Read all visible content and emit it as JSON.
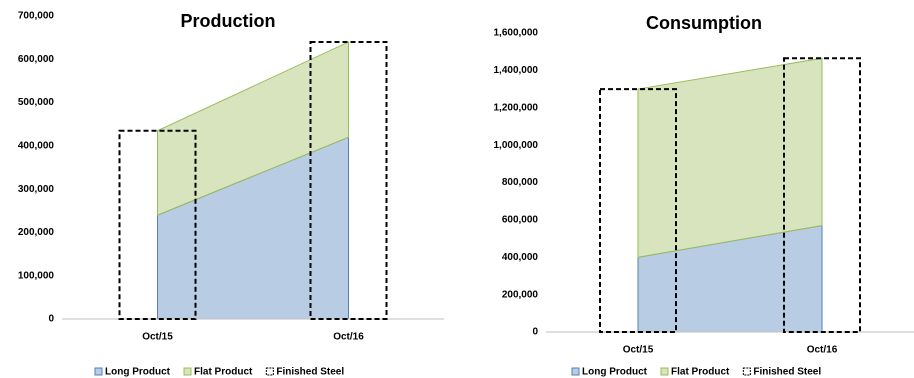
{
  "chart_data": [
    {
      "type": "area",
      "title": "Production",
      "categories": [
        "Oct/15",
        "Oct/16"
      ],
      "series": [
        {
          "name": "Long Product",
          "color": "#b8cce4",
          "values": [
            240000,
            420000
          ]
        },
        {
          "name": "Flat Product",
          "color": "#d7e4bd",
          "values": [
            195000,
            220000
          ]
        },
        {
          "name": "Finished Steel",
          "type": "bar",
          "color": "#000000",
          "values": [
            435000,
            640000
          ]
        }
      ],
      "ylim": [
        0,
        700000
      ],
      "yticks": [
        0,
        {
          "value": 100000,
          "label": "100,000"
        },
        {
          "value": 200000,
          "label": "200,000"
        },
        {
          "value": 300000,
          "label": "300,000"
        },
        {
          "value": 400000,
          "label": "400,000"
        },
        {
          "value": 500000,
          "label": "500,000"
        },
        {
          "value": 600000,
          "label": "600,000"
        },
        {
          "value": 700000,
          "label": "700,000"
        }
      ]
    },
    {
      "type": "area",
      "title": "Consumption",
      "categories": [
        "Oct/15",
        "Oct/16"
      ],
      "series": [
        {
          "name": "Long Product",
          "color": "#b8cce4",
          "values": [
            400000,
            570000
          ]
        },
        {
          "name": "Flat Product",
          "color": "#d7e4bd",
          "values": [
            900000,
            895000
          ]
        },
        {
          "name": "Finished Steel",
          "type": "bar",
          "color": "#000000",
          "values": [
            1300000,
            1465000
          ]
        }
      ],
      "ylim": [
        0,
        1600000
      ],
      "yticks": [
        0,
        {
          "value": 200000,
          "label": "200,000"
        },
        {
          "value": 400000,
          "label": "400,000"
        },
        {
          "value": 600000,
          "label": "600,000"
        },
        {
          "value": 800000,
          "label": "800,000"
        },
        {
          "value": 1000000,
          "label": "1,000,000"
        },
        {
          "value": 1200000,
          "label": "1,200,000"
        },
        {
          "value": 1400000,
          "label": "1,400,000"
        },
        {
          "value": 1600000,
          "label": "1,600,000"
        }
      ]
    }
  ]
}
